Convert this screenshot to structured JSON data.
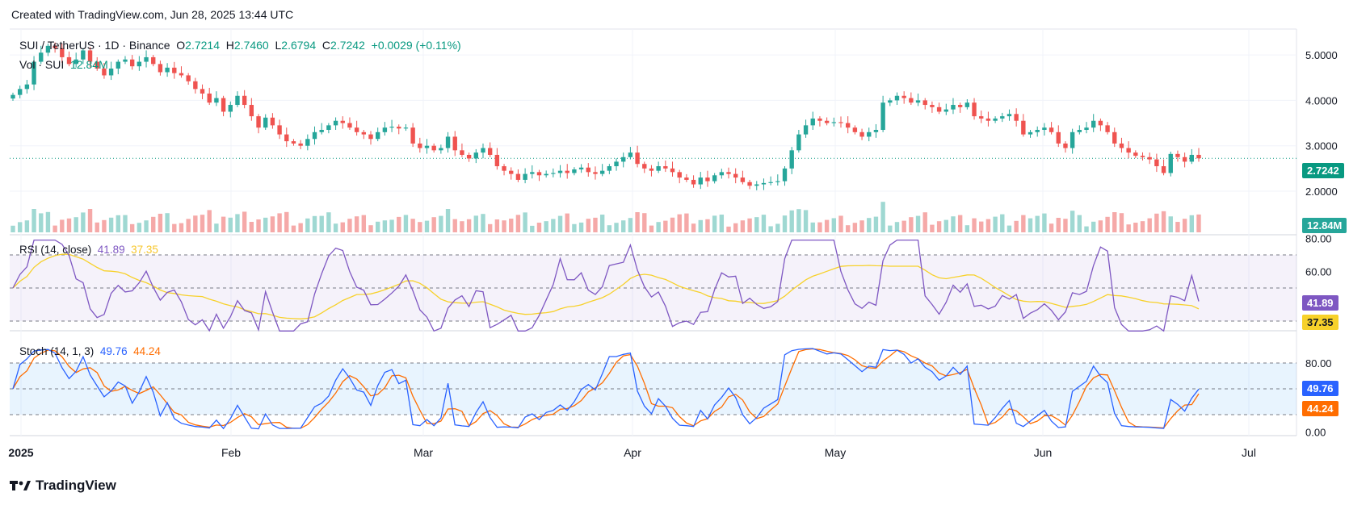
{
  "header": {
    "created": "Created with TradingView.com, Jun 28, 2025 13:44 UTC",
    "symbol": "SUI / TetherUS · 1D · Binance",
    "o_label": "O",
    "o": "2.7214",
    "h_label": "H",
    "h": "2.7460",
    "l_label": "L",
    "l": "2.6794",
    "c_label": "C",
    "c": "2.7242",
    "change": "+0.0029 (+0.11%)",
    "vol_label": "Vol · SUI",
    "vol": "12.84M"
  },
  "brand": "TradingView",
  "colors": {
    "up": "#26a69a",
    "down": "#ef5350",
    "rsi": "#7e57c2",
    "rsi_ma": "#f7d12a",
    "stoch_k": "#2962ff",
    "stoch_d": "#ff6d00",
    "price_line": "#089981"
  },
  "chart_data": {
    "type": "candlestick",
    "price_axis": {
      "ticks": [
        "5.0000",
        "4.0000",
        "3.0000",
        "2.0000"
      ],
      "values": [
        5,
        4,
        3,
        2
      ]
    },
    "time_axis": [
      "2025",
      "Feb",
      "Mar",
      "Apr",
      "May",
      "Jun",
      "Jul"
    ],
    "last_price": "2.7242",
    "last_volume": "12.84M",
    "closes": [
      4.12,
      4.25,
      4.35,
      4.85,
      5.05,
      5.2,
      5.15,
      4.95,
      4.8,
      4.9,
      5.1,
      4.85,
      4.7,
      4.55,
      4.7,
      4.85,
      4.9,
      4.75,
      4.85,
      4.95,
      4.8,
      4.62,
      4.72,
      4.6,
      4.55,
      4.42,
      4.25,
      4.15,
      3.95,
      4.05,
      3.75,
      3.9,
      4.1,
      3.9,
      3.65,
      3.4,
      3.62,
      3.45,
      3.25,
      3.1,
      3.05,
      3.0,
      3.15,
      3.3,
      3.35,
      3.45,
      3.55,
      3.5,
      3.4,
      3.3,
      3.25,
      3.15,
      3.3,
      3.4,
      3.42,
      3.38,
      3.4,
      3.05,
      2.95,
      3.0,
      2.9,
      2.95,
      3.2,
      2.9,
      2.8,
      2.72,
      2.85,
      2.95,
      2.8,
      2.55,
      2.45,
      2.38,
      2.25,
      2.38,
      2.42,
      2.35,
      2.38,
      2.4,
      2.45,
      2.4,
      2.48,
      2.52,
      2.42,
      2.38,
      2.45,
      2.55,
      2.65,
      2.75,
      2.85,
      2.6,
      2.5,
      2.45,
      2.55,
      2.5,
      2.42,
      2.3,
      2.25,
      2.15,
      2.3,
      2.22,
      2.35,
      2.42,
      2.38,
      2.3,
      2.2,
      2.12,
      2.15,
      2.18,
      2.2,
      2.22,
      2.5,
      2.9,
      3.25,
      3.45,
      3.6,
      3.55,
      3.5,
      3.52,
      3.5,
      3.4,
      3.3,
      3.2,
      3.3,
      3.35,
      3.95,
      4.0,
      4.1,
      4.05,
      3.95,
      4.0,
      3.9,
      3.85,
      3.75,
      3.8,
      3.9,
      3.85,
      3.95,
      3.65,
      3.6,
      3.55,
      3.6,
      3.65,
      3.7,
      3.55,
      3.25,
      3.3,
      3.35,
      3.4,
      3.3,
      3.05,
      2.95,
      3.3,
      3.35,
      3.4,
      3.55,
      3.45,
      3.3,
      3.05,
      2.95,
      2.85,
      2.78,
      2.75,
      2.7,
      2.55,
      2.4,
      2.82,
      2.75,
      2.65,
      2.8,
      2.7242
    ],
    "rsi": {
      "label": "RSI (14, close)",
      "value": "41.89",
      "ma_value": "37.35",
      "ticks": [
        "80.00",
        "60.00"
      ]
    },
    "stoch": {
      "label": "Stoch (14, 1, 3)",
      "k": "49.76",
      "d": "44.24",
      "ticks": [
        "80.00",
        "0.00"
      ]
    }
  }
}
